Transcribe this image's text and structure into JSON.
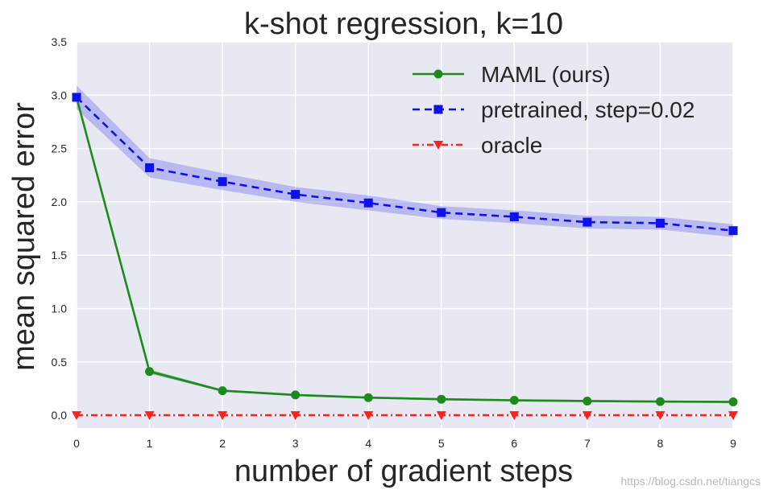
{
  "chart_data": {
    "type": "line",
    "title": "k-shot regression, k=10",
    "xlabel": "number of gradient steps",
    "ylabel": "mean squared error",
    "x": [
      0,
      1,
      2,
      3,
      4,
      5,
      6,
      7,
      8,
      9
    ],
    "xlim": [
      0,
      9
    ],
    "ylim": [
      -0.12,
      3.5
    ],
    "xticks": [
      "0",
      "1",
      "2",
      "3",
      "4",
      "5",
      "6",
      "7",
      "8",
      "9"
    ],
    "yticks": [
      "0.0",
      "0.5",
      "1.0",
      "1.5",
      "2.0",
      "2.5",
      "3.0",
      "3.5"
    ],
    "ytick_values": [
      0.0,
      0.5,
      1.0,
      1.5,
      2.0,
      2.5,
      3.0,
      3.5
    ],
    "grid": true,
    "legend_position": "top-right",
    "series": [
      {
        "name": "MAML (ours)",
        "color": "#1e8a1e",
        "line_style": "solid",
        "marker": "circle",
        "values": [
          2.98,
          0.41,
          0.23,
          0.19,
          0.165,
          0.15,
          0.14,
          0.133,
          0.128,
          0.125
        ],
        "band": [
          0.03,
          0.02,
          0.01,
          0.01,
          0.01,
          0.01,
          0.01,
          0.01,
          0.01,
          0.01
        ]
      },
      {
        "name": "pretrained, step=0.02",
        "color": "#1010e8",
        "band_color": "#8080f0",
        "line_style": "dashed",
        "marker": "square",
        "values": [
          2.98,
          2.32,
          2.19,
          2.07,
          1.99,
          1.9,
          1.86,
          1.81,
          1.8,
          1.73
        ],
        "band": [
          0.11,
          0.09,
          0.08,
          0.07,
          0.07,
          0.06,
          0.06,
          0.06,
          0.06,
          0.06
        ]
      },
      {
        "name": "oracle",
        "color": "#ff2020",
        "line_style": "dashdot",
        "marker": "triangle-down",
        "values": [
          0,
          0,
          0,
          0,
          0,
          0,
          0,
          0,
          0,
          0
        ],
        "band": [
          0,
          0,
          0,
          0,
          0,
          0,
          0,
          0,
          0,
          0
        ]
      }
    ]
  },
  "watermark": "https://blog.csdn.net/tiangcs"
}
